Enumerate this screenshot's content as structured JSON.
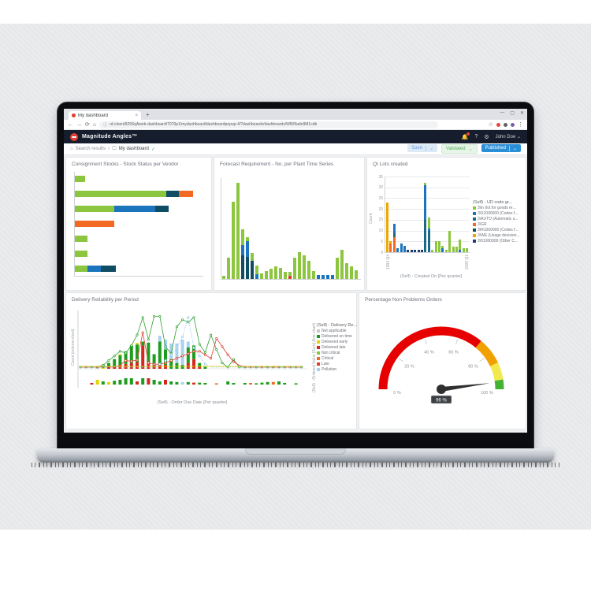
{
  "browser": {
    "tab_title": "My dashboard",
    "url": "rd.cloerd929SqAweb-dashboard/7070p1/mydashboard/dashboardpopup-4/?dashboards/dashboards/W809adn9M1cdb"
  },
  "icons": {
    "back": "←",
    "forward": "→",
    "reload": "⟳",
    "home": "⌂",
    "info": "ⓘ",
    "star": "☆",
    "kebab": "⋮",
    "minimize": "—",
    "maximize": "▢",
    "close": "✕",
    "tab_close": "×",
    "new_tab": "+",
    "bell": "🔔",
    "help": "?",
    "gear": "⚙",
    "chevron": "⌄",
    "breadcrumb_sep": "›",
    "check": "✓",
    "monitor": "🖵"
  },
  "app_header": {
    "brand": "Magnitude Angles™",
    "user": "John Doe"
  },
  "toolbar": {
    "breadcrumb_root": "Search results",
    "breadcrumb_current": "My dashboard",
    "save": "Save",
    "validated": "Validated",
    "published": "Published"
  },
  "palette": {
    "g": "#8cc63e",
    "b": "#1c75bc",
    "t": "#1a6a85",
    "n": "#0e4d64",
    "nv": "#1c3e6e",
    "o": "#f26a21",
    "y": "#eda900",
    "r": "#e03c31",
    "lb": "#a8d2f0",
    "gy": "#c9c9c9",
    "dg": "#1e9c1e",
    "dr": "#d42a1e",
    "yl": "#e3d400"
  },
  "chart_data": [
    {
      "type": "bar",
      "orientation": "horizontal",
      "stacked": true,
      "title": "Consignment Stocks - Stock Status per Vendor",
      "xlim": [
        0,
        6.5
      ],
      "series": [
        {
          "name": "green",
          "color": "g",
          "values": [
            0.5,
            4.6,
            2.0,
            0,
            0.65,
            0.65,
            0.65
          ]
        },
        {
          "name": "blue",
          "color": "b",
          "values": [
            0,
            0,
            2.05,
            0,
            0,
            0,
            0.65
          ]
        },
        {
          "name": "navy",
          "color": "n",
          "values": [
            0,
            0.65,
            0.65,
            0,
            0,
            0,
            0.75
          ]
        },
        {
          "name": "orange",
          "color": "o",
          "values": [
            0,
            0.7,
            0,
            2.0,
            0,
            0,
            0
          ]
        }
      ]
    },
    {
      "type": "bar",
      "stacked": true,
      "title": "Forecast Requirement - No. per Plant Time Series",
      "ylim": [
        0,
        9
      ],
      "bars": [
        [
          [
            "g",
            0.3
          ]
        ],
        [
          [
            "g",
            1.9
          ]
        ],
        [
          [
            "g",
            6.9
          ]
        ],
        [
          [
            "g",
            8.6
          ]
        ],
        [
          [
            "n",
            2.1
          ],
          [
            "b",
            0.9
          ],
          [
            "g",
            1.4
          ]
        ],
        [
          [
            "n",
            2.0
          ],
          [
            "b",
            1.4
          ],
          [
            "g",
            0.3
          ]
        ],
        [
          [
            "n",
            1.6
          ],
          [
            "g",
            0.7
          ]
        ],
        [
          [
            "b",
            0.4
          ],
          [
            "g",
            0.8
          ]
        ],
        [
          [
            "g",
            0.5
          ]
        ],
        [
          [
            "g",
            0.7
          ]
        ],
        [
          [
            "g",
            0.9
          ]
        ],
        [
          [
            "g",
            1.1
          ]
        ],
        [
          [
            "g",
            1.0
          ]
        ],
        [
          [
            "g",
            0.6
          ]
        ],
        [
          [
            "r",
            0.3
          ],
          [
            "g",
            0.3
          ]
        ],
        [
          [
            "g",
            1.9
          ]
        ],
        [
          [
            "g",
            2.4
          ]
        ],
        [
          [
            "g",
            2.1
          ]
        ],
        [
          [
            "g",
            1.6
          ]
        ],
        [
          [
            "g",
            0.7
          ]
        ],
        [
          [
            "b",
            0.35
          ]
        ],
        [
          [
            "b",
            0.35
          ]
        ],
        [
          [
            "b",
            0.35
          ]
        ],
        [
          [
            "b",
            0.35
          ]
        ],
        [
          [
            "g",
            1.9
          ]
        ],
        [
          [
            "g",
            2.6
          ]
        ],
        [
          [
            "g",
            1.4
          ]
        ],
        [
          [
            "g",
            1.1
          ]
        ],
        [
          [
            "g",
            0.8
          ]
        ]
      ]
    },
    {
      "type": "bar",
      "stacked": true,
      "title": "QI Lots created",
      "ylabel": "Count",
      "ylim": [
        0,
        35
      ],
      "yticks": [
        0,
        5,
        10,
        15,
        20,
        25,
        30,
        35
      ],
      "x_ticks": [
        "1994 Q4",
        "2020 Q1"
      ],
      "x_axis_title": "(Self) - Created On  [Per quarter]",
      "legend": {
        "title": "(Self) - UD code gr...",
        "items": [
          [
            "g",
            "3\\in (lot for goods re..."
          ],
          [
            "b",
            "3\\S1000000 (Codes f..."
          ],
          [
            "t",
            "3\\AUTO (Automatic u..."
          ],
          [
            "o",
            "3\\GR"
          ],
          [
            "n",
            "3\\R1000000 (Codes f..."
          ],
          [
            "y",
            "3\\WE (Usage decision..."
          ],
          [
            "nv",
            "3\\01000000 (Other C..."
          ]
        ]
      },
      "bars": [
        [
          [
            "y",
            23
          ]
        ],
        [
          [
            "o",
            4
          ],
          [
            "y",
            1
          ]
        ],
        [
          [
            "o",
            7
          ],
          [
            "t",
            2
          ],
          [
            "b",
            4
          ]
        ],
        [
          [
            "b",
            2
          ]
        ],
        [
          [
            "b",
            4
          ]
        ],
        [
          [
            "b",
            3
          ]
        ],
        [
          [
            "nv",
            1
          ]
        ],
        [
          [
            "nv",
            1
          ]
        ],
        [
          [
            "nv",
            1
          ]
        ],
        [
          [
            "nv",
            1
          ]
        ],
        [
          [
            "nv",
            1
          ]
        ],
        [
          [
            "t",
            15
          ],
          [
            "b",
            16
          ],
          [
            "g",
            1
          ]
        ],
        [
          [
            "t",
            10
          ],
          [
            "b",
            1
          ],
          [
            "g",
            5
          ]
        ],
        [
          [
            "g",
            1
          ]
        ],
        [
          [
            "g",
            5
          ]
        ],
        [
          [
            "g",
            5
          ]
        ],
        [
          [
            "b",
            2
          ],
          [
            "g",
            1
          ]
        ],
        [
          [
            "g",
            1
          ]
        ],
        [
          [
            "g",
            10
          ]
        ],
        [
          [
            "g",
            2.5
          ]
        ],
        [
          [
            "g",
            2.5
          ]
        ],
        [
          [
            "b",
            1
          ],
          [
            "g",
            5
          ]
        ],
        [
          [
            "g",
            2
          ]
        ],
        [
          [
            "g",
            2
          ]
        ]
      ]
    },
    {
      "type": "combo",
      "title": "Delivery Reliability per Period",
      "left_axis_label": "Count (column chart)",
      "right_axis_label": "(Self) - Ordered Value  [Sum] (line chart)",
      "x_axis_title": "(Self) - Order Due Date  [Per quarter]",
      "left_ylim": [
        0,
        30
      ],
      "right_ylim": [
        0,
        100
      ],
      "legend": {
        "title": "(Self) - Delivery Re...",
        "items": [
          [
            "gy",
            "Not applicable"
          ],
          [
            "dg",
            "Delivered on time"
          ],
          [
            "yl",
            "Delivered early"
          ],
          [
            "dr",
            "Delivered late"
          ],
          [
            "g",
            "Not critical"
          ],
          [
            "o",
            "Critical"
          ],
          [
            "r",
            "Late"
          ],
          [
            "lb",
            "Pollution"
          ]
        ]
      },
      "lines": [
        {
          "name": "Not critical",
          "color": "#2fa12f",
          "dash": "",
          "values": [
            3,
            3,
            3,
            3,
            6,
            14,
            22,
            30,
            27,
            40,
            58,
            88,
            50,
            90,
            90,
            38,
            26,
            72,
            84,
            80,
            88,
            42,
            28,
            58,
            33,
            10,
            3,
            16,
            3,
            3,
            3,
            3,
            3,
            3,
            3,
            3,
            3,
            3,
            3,
            3
          ]
        },
        {
          "name": "Late",
          "color": "#e03c31",
          "dash": "",
          "values": [
            3,
            3,
            3,
            3,
            3,
            3,
            3,
            6,
            14,
            13,
            15,
            62,
            10,
            8,
            8,
            10,
            14,
            18,
            22,
            26,
            30,
            30,
            24,
            18,
            52,
            38,
            24,
            12,
            6,
            3,
            3,
            3,
            3,
            3,
            3,
            3,
            3,
            3,
            3,
            3
          ]
        },
        {
          "name": "Pollution",
          "color": "#8ec6ee",
          "dash": "1.5,1.5",
          "values": [
            3,
            3,
            3,
            3,
            3,
            3,
            3,
            3,
            3,
            3,
            3,
            3,
            3,
            3,
            8,
            14,
            24,
            36,
            55,
            88,
            36,
            22,
            8,
            3,
            3,
            3,
            3,
            3,
            3,
            3,
            3,
            3,
            3,
            3,
            3,
            3,
            3,
            3,
            3,
            3
          ]
        },
        {
          "name": "Delivered early line",
          "color": "#e3d400",
          "dash": "",
          "values": [
            4,
            4,
            4,
            4,
            4,
            4,
            4,
            4,
            4,
            4,
            4,
            4,
            4,
            4,
            4,
            4,
            4,
            4,
            4,
            4,
            4,
            4,
            4,
            4,
            4,
            4,
            4,
            4,
            4,
            4,
            4,
            4,
            4,
            4,
            4,
            4,
            4,
            4,
            4,
            4
          ]
        }
      ],
      "bars": [
        null,
        null,
        null,
        [
          [
            "gy",
            0.6
          ]
        ],
        [
          [
            "yl",
            0.5
          ],
          [
            "dg",
            1.5
          ]
        ],
        [
          [
            "dr",
            0.8
          ],
          [
            "dg",
            2.2
          ]
        ],
        [
          [
            "dr",
            1.5
          ],
          [
            "dg",
            3.5
          ]
        ],
        [
          [
            "dr",
            2
          ],
          [
            "dg",
            5
          ],
          [
            "yl",
            0.5
          ]
        ],
        [
          [
            "dr",
            2.5
          ],
          [
            "dg",
            6.5
          ]
        ],
        [
          [
            "dr",
            3
          ],
          [
            "dg",
            9
          ]
        ],
        [
          [
            "dr",
            3.5
          ],
          [
            "dg",
            9
          ],
          [
            "yl",
            0.8
          ]
        ],
        [
          [
            "dr",
            12
          ],
          [
            "dg",
            2
          ]
        ],
        [
          [
            "dr",
            3.5
          ],
          [
            "dg",
            10
          ]
        ],
        [
          [
            "dr",
            2
          ],
          [
            "dg",
            5.5
          ]
        ],
        [
          [
            "dr",
            3
          ],
          [
            "dg",
            11
          ],
          [
            "lb",
            3
          ]
        ],
        [
          [
            "dr",
            2
          ],
          [
            "dg",
            8
          ],
          [
            "lb",
            5
          ]
        ],
        [
          [
            "dg",
            5
          ],
          [
            "lb",
            8
          ]
        ],
        [
          [
            "dg",
            3
          ],
          [
            "lb",
            10
          ]
        ],
        [
          [
            "dg",
            2
          ],
          [
            "lb",
            13
          ]
        ],
        [
          [
            "dr",
            3
          ],
          [
            "dg",
            8
          ],
          [
            "lb",
            3
          ]
        ],
        [
          [
            "dr",
            5
          ],
          [
            "dg",
            7
          ]
        ],
        [
          [
            "dr",
            1
          ],
          [
            "dg",
            2
          ]
        ],
        [
          [
            "dg",
            1
          ]
        ],
        null,
        null,
        null,
        null,
        null,
        null,
        null,
        null,
        null,
        null,
        null,
        null,
        null,
        null,
        null,
        null,
        null
      ],
      "mini_bars": [
        null,
        null,
        [
          "dr",
          0.5
        ],
        [
          "yl",
          1.5
        ],
        [
          "dg",
          1
        ],
        [
          "yl",
          0.8
        ],
        [
          "dg",
          1.2
        ],
        [
          "dg",
          1.5
        ],
        [
          "dg",
          2
        ],
        [
          "dg",
          2
        ],
        [
          "dr",
          1
        ],
        [
          "dg",
          2
        ],
        [
          "dr",
          2
        ],
        [
          "dg",
          1.5
        ],
        [
          "dg",
          1
        ],
        [
          "dr",
          1.5
        ],
        [
          "dg",
          1
        ],
        [
          "dg",
          0.8
        ],
        [
          "lb",
          0.8
        ],
        [
          "dg",
          0.8
        ],
        [
          "dr",
          0.6
        ],
        [
          "dg",
          0.6
        ],
        [
          "dg",
          0.5
        ],
        null,
        [
          "o",
          0.4
        ],
        null,
        [
          "dg",
          1
        ],
        [
          "dg",
          0.5
        ],
        null,
        [
          "dg",
          0.5
        ],
        [
          "o",
          0.5
        ],
        [
          "dg",
          0.4
        ],
        [
          "dg",
          0.6
        ],
        [
          "dg",
          0.8
        ],
        [
          "o",
          0.8
        ],
        [
          "dg",
          1
        ],
        [
          "dg",
          0.5
        ],
        null,
        [
          "dg",
          0.4
        ],
        null
      ]
    },
    {
      "type": "gauge",
      "title": "Percentage Non Problems Orders",
      "min": 0,
      "max": 100,
      "ticks": [
        "0 %",
        "20 %",
        "40 %",
        "60 %",
        "80 %",
        "100 %"
      ],
      "zones": [
        {
          "from": 0,
          "to": 72,
          "color": "#e60000"
        },
        {
          "from": 72,
          "to": 86,
          "color": "#f0a000"
        },
        {
          "from": 86,
          "to": 95,
          "color": "#f2e94e"
        },
        {
          "from": 95,
          "to": 100,
          "color": "#44b335"
        }
      ],
      "value": 96,
      "value_label": "96 %"
    }
  ]
}
